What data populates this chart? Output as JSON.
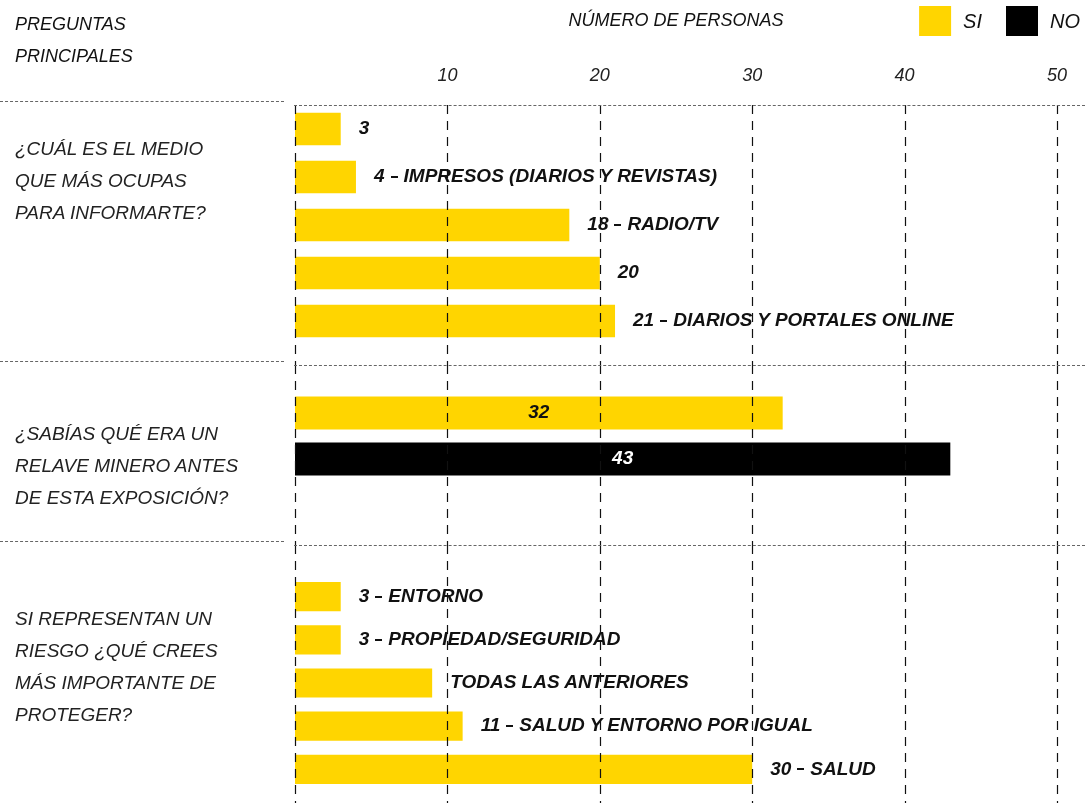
{
  "chart_data": [
    {
      "type": "bar",
      "orientation": "horizontal",
      "xlabel": "NÚMERO DE PERSONAS",
      "ylabel": "¿CUÁL ES EL MEDIO QUE MÁS OCUPAS PARA INFORMARTE?",
      "annotations": [
        "PREGUNTAS PRINCIPALES"
      ],
      "categories": [
        null,
        "IMPRESOS (DIARIOS Y REVISTAS)",
        "RADIO/TV",
        null,
        "DIARIOS Y PORTALES ONLINE"
      ],
      "series": [
        {
          "name": "SI",
          "color": "#ffd500",
          "values": [
            3,
            4,
            18,
            20,
            21
          ],
          "value_labels": [
            "3",
            "4",
            "18",
            "20",
            "21"
          ]
        },
        {
          "name": "NO",
          "color": "#000000",
          "values": [
            null,
            null,
            null,
            null,
            null
          ]
        }
      ],
      "xlim": [
        0,
        50
      ],
      "xticks": [
        10,
        20,
        30,
        40,
        50
      ],
      "grid": "x",
      "legend": "top right"
    },
    {
      "type": "bar",
      "orientation": "horizontal",
      "ylabel": "¿SABÍAS QUÉ ERA UN RELAVE MINERO ANTES DE ESTA EXPOSICIÓN?",
      "categories": [
        null
      ],
      "series": [
        {
          "color": "#ffd500",
          "values": [
            32
          ]
        },
        {
          "color": "#000000",
          "values": [
            43
          ]
        }
      ],
      "data_labels": true,
      "xlim": [
        0,
        50
      ],
      "xticks": [
        10,
        20,
        30,
        40,
        50
      ],
      "grid": "x",
      "tick_labels": false
    },
    {
      "type": "bar",
      "orientation": "horizontal",
      "ylabel": "SI REPRESENTAN UN RIESGO ¿QUÉ CREES MÁS IMPORTANTE DE PROTEGER?",
      "categories": [
        "ENTORNO",
        "PROPIEDAD/SEGURIDAD",
        "TODAS LAS ANTERIORES",
        "SALUD Y ENTORNO POR IGUAL",
        "SALUD"
      ],
      "series": [
        {
          "color": "#ffd500",
          "values": [
            3,
            3,
            9,
            11,
            30
          ],
          "value_labels": [
            "3",
            "3",
            null,
            "11",
            "30"
          ]
        }
      ],
      "xlim": [
        0,
        50
      ],
      "xticks": [
        10,
        20,
        30,
        40,
        50
      ],
      "grid": "x",
      "tick_labels": false
    }
  ]
}
